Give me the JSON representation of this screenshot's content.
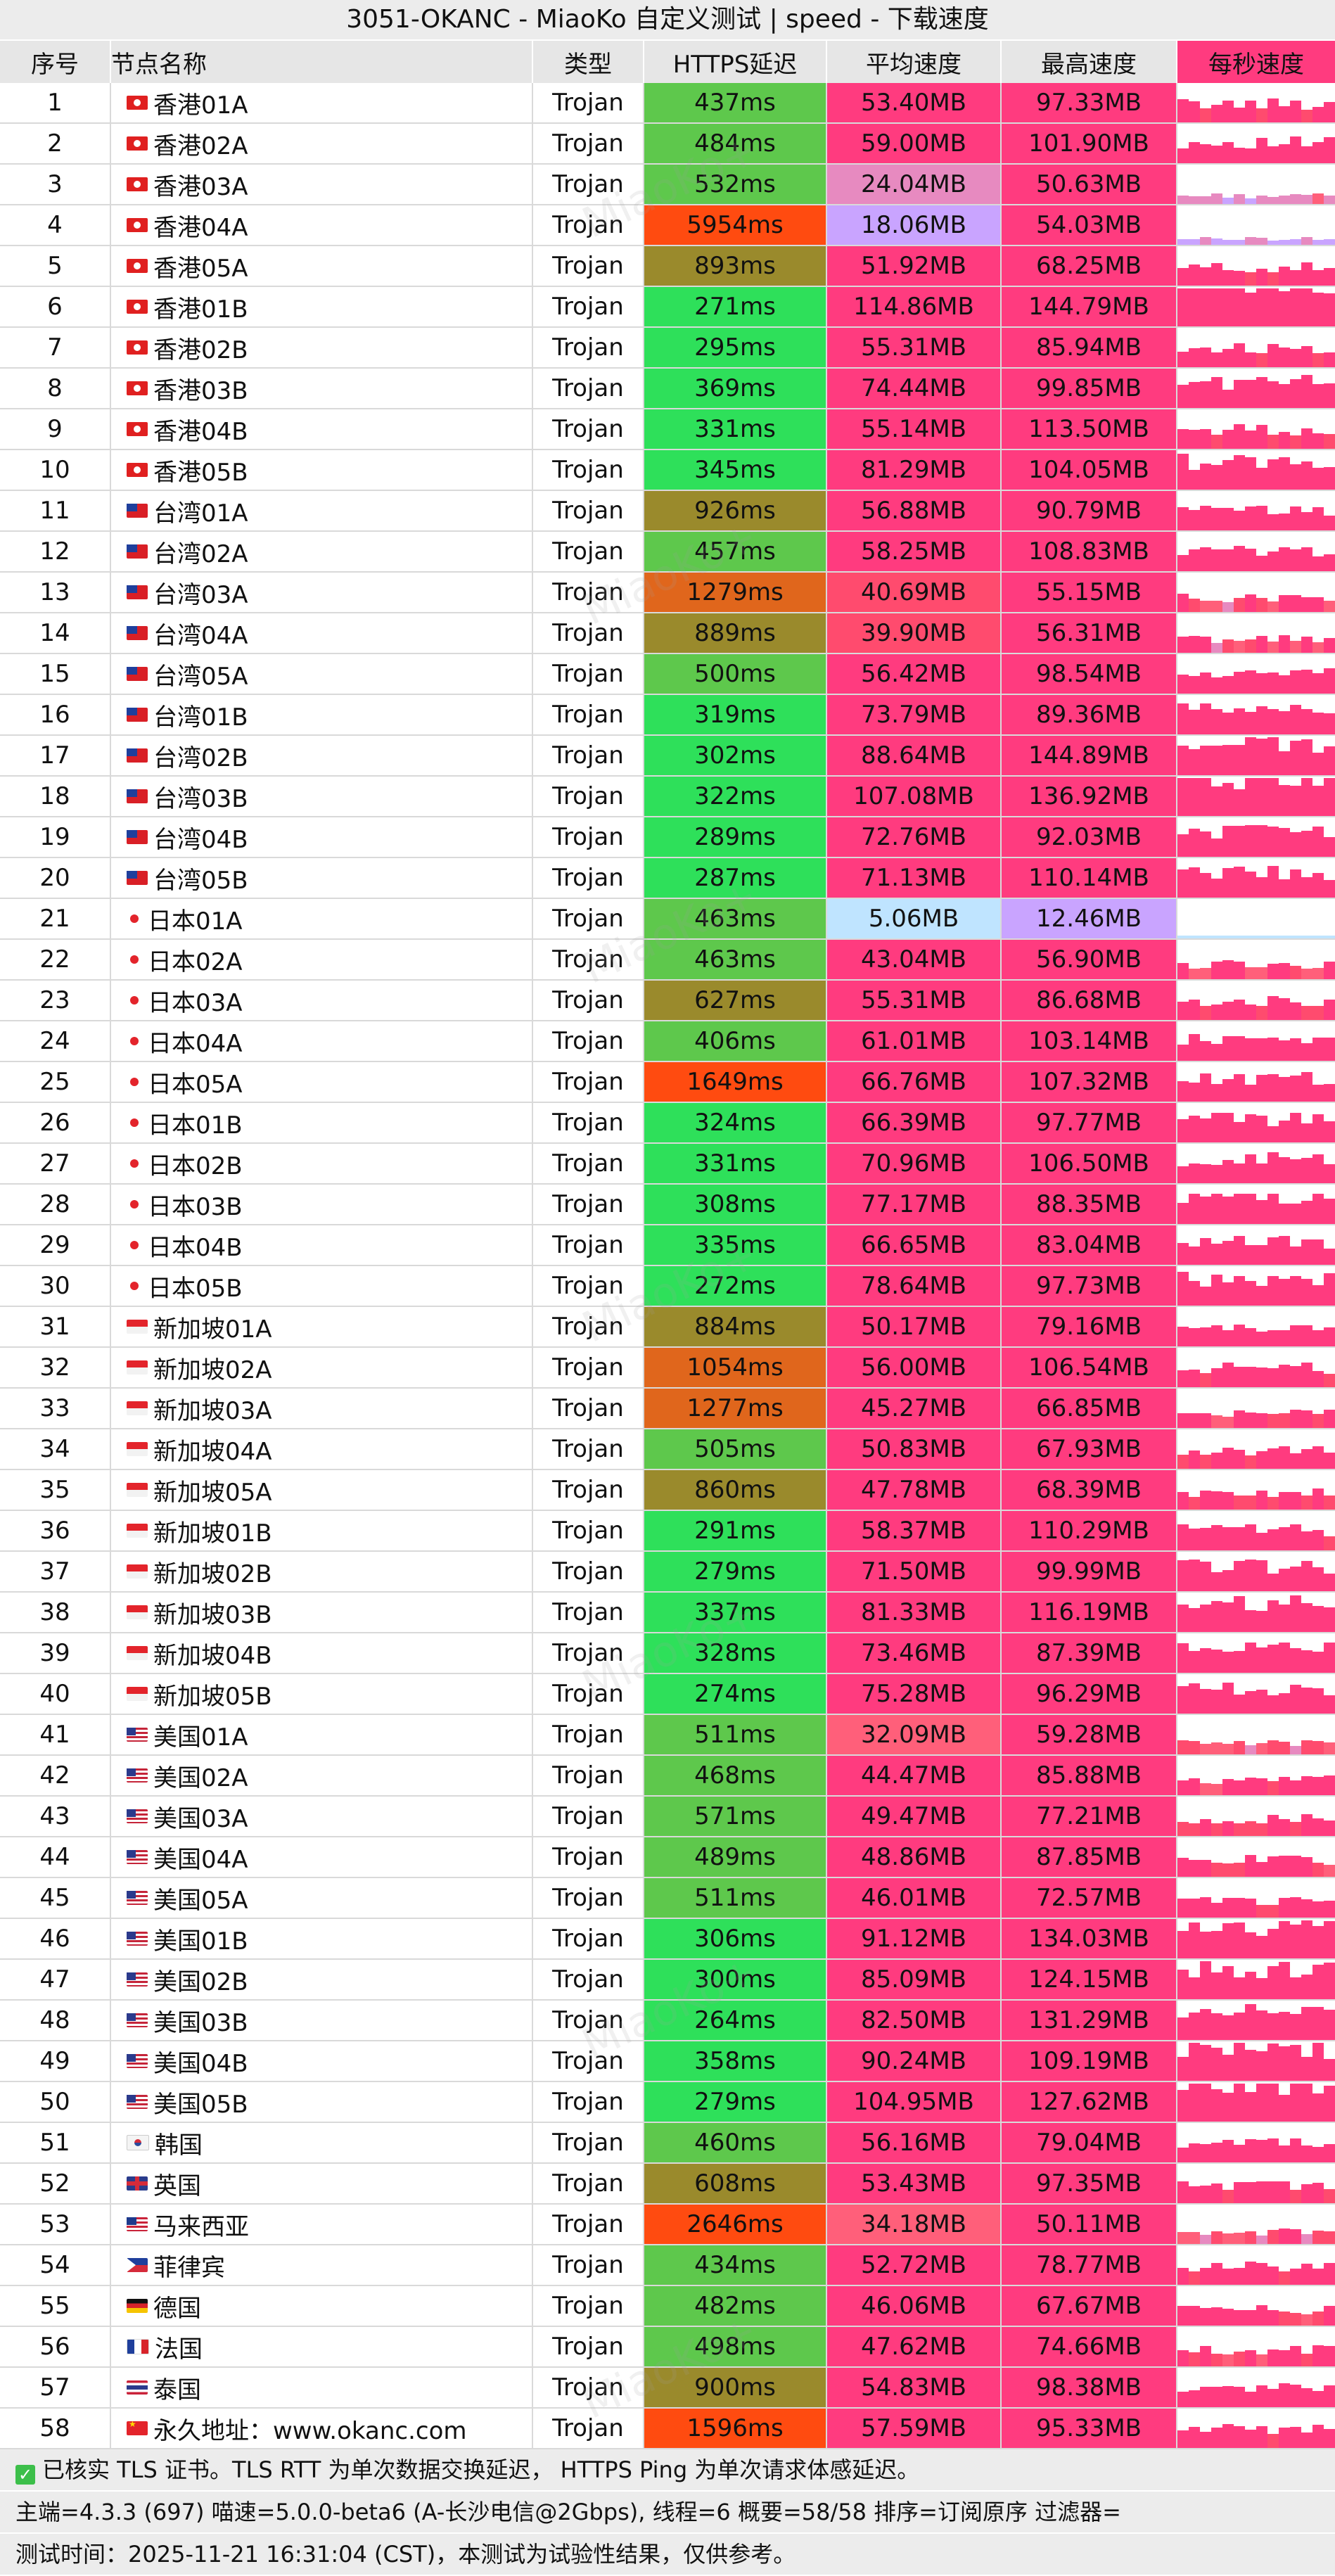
{
  "title": "3051-OKANC - MiaoKo 自定义测试 | speed - 下载速度",
  "headers": {
    "idx": "序号",
    "name": "节点名称",
    "type": "类型",
    "https": "HTTPS延迟",
    "avg": "平均速度",
    "max": "最高速度",
    "speed": "每秒速度"
  },
  "colors": {
    "accent": "#ff3b7f",
    "good": "#2ee05a",
    "ok": "#5ec84c",
    "warn": "#9a8a2c",
    "bad": "#ff4b10",
    "weak": "#c9a4ff",
    "low": "#bfe4ff"
  },
  "rows": [
    {
      "i": "1",
      "f": "hk",
      "n": "香港01A",
      "t": "Trojan",
      "h": "437ms",
      "a": "53.40MB",
      "m": "97.33MB"
    },
    {
      "i": "2",
      "f": "hk",
      "n": "香港02A",
      "t": "Trojan",
      "h": "484ms",
      "a": "59.00MB",
      "m": "101.90MB"
    },
    {
      "i": "3",
      "f": "hk",
      "n": "香港03A",
      "t": "Trojan",
      "h": "532ms",
      "a": "24.04MB",
      "m": "50.63MB"
    },
    {
      "i": "4",
      "f": "hk",
      "n": "香港04A",
      "t": "Trojan",
      "h": "5954ms",
      "a": "18.06MB",
      "m": "54.03MB"
    },
    {
      "i": "5",
      "f": "hk",
      "n": "香港05A",
      "t": "Trojan",
      "h": "893ms",
      "a": "51.92MB",
      "m": "68.25MB"
    },
    {
      "i": "6",
      "f": "hk",
      "n": "香港01B",
      "t": "Trojan",
      "h": "271ms",
      "a": "114.86MB",
      "m": "144.79MB"
    },
    {
      "i": "7",
      "f": "hk",
      "n": "香港02B",
      "t": "Trojan",
      "h": "295ms",
      "a": "55.31MB",
      "m": "85.94MB"
    },
    {
      "i": "8",
      "f": "hk",
      "n": "香港03B",
      "t": "Trojan",
      "h": "369ms",
      "a": "74.44MB",
      "m": "99.85MB"
    },
    {
      "i": "9",
      "f": "hk",
      "n": "香港04B",
      "t": "Trojan",
      "h": "331ms",
      "a": "55.14MB",
      "m": "113.50MB"
    },
    {
      "i": "10",
      "f": "hk",
      "n": "香港05B",
      "t": "Trojan",
      "h": "345ms",
      "a": "81.29MB",
      "m": "104.05MB"
    },
    {
      "i": "11",
      "f": "tw",
      "n": "台湾01A",
      "t": "Trojan",
      "h": "926ms",
      "a": "56.88MB",
      "m": "90.79MB"
    },
    {
      "i": "12",
      "f": "tw",
      "n": "台湾02A",
      "t": "Trojan",
      "h": "457ms",
      "a": "58.25MB",
      "m": "108.83MB"
    },
    {
      "i": "13",
      "f": "tw",
      "n": "台湾03A",
      "t": "Trojan",
      "h": "1279ms",
      "a": "40.69MB",
      "m": "55.15MB"
    },
    {
      "i": "14",
      "f": "tw",
      "n": "台湾04A",
      "t": "Trojan",
      "h": "889ms",
      "a": "39.90MB",
      "m": "56.31MB"
    },
    {
      "i": "15",
      "f": "tw",
      "n": "台湾05A",
      "t": "Trojan",
      "h": "500ms",
      "a": "56.42MB",
      "m": "98.54MB"
    },
    {
      "i": "16",
      "f": "tw",
      "n": "台湾01B",
      "t": "Trojan",
      "h": "319ms",
      "a": "73.79MB",
      "m": "89.36MB"
    },
    {
      "i": "17",
      "f": "tw",
      "n": "台湾02B",
      "t": "Trojan",
      "h": "302ms",
      "a": "88.64MB",
      "m": "144.89MB"
    },
    {
      "i": "18",
      "f": "tw",
      "n": "台湾03B",
      "t": "Trojan",
      "h": "322ms",
      "a": "107.08MB",
      "m": "136.92MB"
    },
    {
      "i": "19",
      "f": "tw",
      "n": "台湾04B",
      "t": "Trojan",
      "h": "289ms",
      "a": "72.76MB",
      "m": "92.03MB"
    },
    {
      "i": "20",
      "f": "tw",
      "n": "台湾05B",
      "t": "Trojan",
      "h": "287ms",
      "a": "71.13MB",
      "m": "110.14MB"
    },
    {
      "i": "21",
      "f": "jp",
      "n": "日本01A",
      "t": "Trojan",
      "h": "463ms",
      "a": "5.06MB",
      "m": "12.46MB"
    },
    {
      "i": "22",
      "f": "jp",
      "n": "日本02A",
      "t": "Trojan",
      "h": "463ms",
      "a": "43.04MB",
      "m": "56.90MB"
    },
    {
      "i": "23",
      "f": "jp",
      "n": "日本03A",
      "t": "Trojan",
      "h": "627ms",
      "a": "55.31MB",
      "m": "86.68MB"
    },
    {
      "i": "24",
      "f": "jp",
      "n": "日本04A",
      "t": "Trojan",
      "h": "406ms",
      "a": "61.01MB",
      "m": "103.14MB"
    },
    {
      "i": "25",
      "f": "jp",
      "n": "日本05A",
      "t": "Trojan",
      "h": "1649ms",
      "a": "66.76MB",
      "m": "107.32MB"
    },
    {
      "i": "26",
      "f": "jp",
      "n": "日本01B",
      "t": "Trojan",
      "h": "324ms",
      "a": "66.39MB",
      "m": "97.77MB"
    },
    {
      "i": "27",
      "f": "jp",
      "n": "日本02B",
      "t": "Trojan",
      "h": "331ms",
      "a": "70.96MB",
      "m": "106.50MB"
    },
    {
      "i": "28",
      "f": "jp",
      "n": "日本03B",
      "t": "Trojan",
      "h": "308ms",
      "a": "77.17MB",
      "m": "88.35MB"
    },
    {
      "i": "29",
      "f": "jp",
      "n": "日本04B",
      "t": "Trojan",
      "h": "335ms",
      "a": "66.65MB",
      "m": "83.04MB"
    },
    {
      "i": "30",
      "f": "jp",
      "n": "日本05B",
      "t": "Trojan",
      "h": "272ms",
      "a": "78.64MB",
      "m": "97.73MB"
    },
    {
      "i": "31",
      "f": "sg",
      "n": "新加坡01A",
      "t": "Trojan",
      "h": "884ms",
      "a": "50.17MB",
      "m": "79.16MB"
    },
    {
      "i": "32",
      "f": "sg",
      "n": "新加坡02A",
      "t": "Trojan",
      "h": "1054ms",
      "a": "56.00MB",
      "m": "106.54MB"
    },
    {
      "i": "33",
      "f": "sg",
      "n": "新加坡03A",
      "t": "Trojan",
      "h": "1277ms",
      "a": "45.27MB",
      "m": "66.85MB"
    },
    {
      "i": "34",
      "f": "sg",
      "n": "新加坡04A",
      "t": "Trojan",
      "h": "505ms",
      "a": "50.83MB",
      "m": "67.93MB"
    },
    {
      "i": "35",
      "f": "sg",
      "n": "新加坡05A",
      "t": "Trojan",
      "h": "860ms",
      "a": "47.78MB",
      "m": "68.39MB"
    },
    {
      "i": "36",
      "f": "sg",
      "n": "新加坡01B",
      "t": "Trojan",
      "h": "291ms",
      "a": "58.37MB",
      "m": "110.29MB"
    },
    {
      "i": "37",
      "f": "sg",
      "n": "新加坡02B",
      "t": "Trojan",
      "h": "279ms",
      "a": "71.50MB",
      "m": "99.99MB"
    },
    {
      "i": "38",
      "f": "sg",
      "n": "新加坡03B",
      "t": "Trojan",
      "h": "337ms",
      "a": "81.33MB",
      "m": "116.19MB"
    },
    {
      "i": "39",
      "f": "sg",
      "n": "新加坡04B",
      "t": "Trojan",
      "h": "328ms",
      "a": "73.46MB",
      "m": "87.39MB"
    },
    {
      "i": "40",
      "f": "sg",
      "n": "新加坡05B",
      "t": "Trojan",
      "h": "274ms",
      "a": "75.28MB",
      "m": "96.29MB"
    },
    {
      "i": "41",
      "f": "us",
      "n": "美国01A",
      "t": "Trojan",
      "h": "511ms",
      "a": "32.09MB",
      "m": "59.28MB"
    },
    {
      "i": "42",
      "f": "us",
      "n": "美国02A",
      "t": "Trojan",
      "h": "468ms",
      "a": "44.47MB",
      "m": "85.88MB"
    },
    {
      "i": "43",
      "f": "us",
      "n": "美国03A",
      "t": "Trojan",
      "h": "571ms",
      "a": "49.47MB",
      "m": "77.21MB"
    },
    {
      "i": "44",
      "f": "us",
      "n": "美国04A",
      "t": "Trojan",
      "h": "489ms",
      "a": "48.86MB",
      "m": "87.85MB"
    },
    {
      "i": "45",
      "f": "us",
      "n": "美国05A",
      "t": "Trojan",
      "h": "511ms",
      "a": "46.01MB",
      "m": "72.57MB"
    },
    {
      "i": "46",
      "f": "us",
      "n": "美国01B",
      "t": "Trojan",
      "h": "306ms",
      "a": "91.12MB",
      "m": "134.03MB"
    },
    {
      "i": "47",
      "f": "us",
      "n": "美国02B",
      "t": "Trojan",
      "h": "300ms",
      "a": "85.09MB",
      "m": "124.15MB"
    },
    {
      "i": "48",
      "f": "us",
      "n": "美国03B",
      "t": "Trojan",
      "h": "264ms",
      "a": "82.50MB",
      "m": "131.29MB"
    },
    {
      "i": "49",
      "f": "us",
      "n": "美国04B",
      "t": "Trojan",
      "h": "358ms",
      "a": "90.24MB",
      "m": "109.19MB"
    },
    {
      "i": "50",
      "f": "us",
      "n": "美国05B",
      "t": "Trojan",
      "h": "279ms",
      "a": "104.95MB",
      "m": "127.62MB"
    },
    {
      "i": "51",
      "f": "kr",
      "n": "韩国",
      "t": "Trojan",
      "h": "460ms",
      "a": "56.16MB",
      "m": "79.04MB"
    },
    {
      "i": "52",
      "f": "gb",
      "n": "英国",
      "t": "Trojan",
      "h": "608ms",
      "a": "53.43MB",
      "m": "97.35MB"
    },
    {
      "i": "53",
      "f": "my",
      "n": "马来西亚",
      "t": "Trojan",
      "h": "2646ms",
      "a": "34.18MB",
      "m": "50.11MB"
    },
    {
      "i": "54",
      "f": "ph",
      "n": "菲律宾",
      "t": "Trojan",
      "h": "434ms",
      "a": "52.72MB",
      "m": "78.77MB"
    },
    {
      "i": "55",
      "f": "de",
      "n": "德国",
      "t": "Trojan",
      "h": "482ms",
      "a": "46.06MB",
      "m": "67.67MB"
    },
    {
      "i": "56",
      "f": "fr",
      "n": "法国",
      "t": "Trojan",
      "h": "498ms",
      "a": "47.62MB",
      "m": "74.66MB"
    },
    {
      "i": "57",
      "f": "th",
      "n": "泰国",
      "t": "Trojan",
      "h": "900ms",
      "a": "54.83MB",
      "m": "98.38MB"
    },
    {
      "i": "58",
      "f": "cn",
      "n": "永久地址：www.okanc.com",
      "t": "Trojan",
      "h": "1596ms",
      "a": "57.59MB",
      "m": "95.33MB"
    }
  ],
  "footer": {
    "line1": "已核实 TLS 证书。TLS RTT 为单次数据交换延迟， HTTPS Ping 为单次请求体感延迟。",
    "line2": "主端=4.3.3 (697) 喵速=5.0.0-beta6 (A-长沙电信@2Gbps), 线程=6 概要=58/58 排序=订阅原序 过滤器=",
    "line3": "测试时间：2025-11-21 16:31:04 (CST)，本测试为试验性结果，仅供参考。"
  },
  "watermark": "MiaoKo+"
}
